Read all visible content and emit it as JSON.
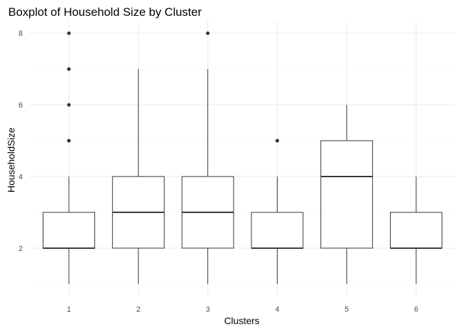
{
  "chart_data": {
    "type": "boxplot",
    "title": "Boxplot of Household Size by Cluster",
    "xlabel": "Clusters",
    "ylabel": "HouseholdSize",
    "categories": [
      "1",
      "2",
      "3",
      "4",
      "5",
      "6"
    ],
    "boxes": [
      {
        "cluster": "1",
        "whisker_low": 1,
        "q1": 2,
        "median": 2,
        "q3": 3,
        "whisker_high": 4,
        "outliers": [
          5,
          6,
          7,
          8
        ]
      },
      {
        "cluster": "2",
        "whisker_low": 1,
        "q1": 2,
        "median": 3,
        "q3": 4,
        "whisker_high": 7,
        "outliers": []
      },
      {
        "cluster": "3",
        "whisker_low": 1,
        "q1": 2,
        "median": 3,
        "q3": 4,
        "whisker_high": 7,
        "outliers": [
          8
        ]
      },
      {
        "cluster": "4",
        "whisker_low": 1,
        "q1": 2,
        "median": 2,
        "q3": 3,
        "whisker_high": 4,
        "outliers": [
          5
        ]
      },
      {
        "cluster": "5",
        "whisker_low": 1,
        "q1": 2,
        "median": 4,
        "q3": 5,
        "whisker_high": 6,
        "outliers": []
      },
      {
        "cluster": "6",
        "whisker_low": 1,
        "q1": 2,
        "median": 2,
        "q3": 3,
        "whisker_high": 4,
        "outliers": []
      }
    ],
    "ylim": [
      0.65,
      8.35
    ],
    "yticks": [
      2,
      4,
      6,
      8
    ],
    "ytick_labels": [
      "2",
      "4",
      "6",
      "8"
    ],
    "grid": true,
    "colors": {
      "box_fill": "#ffffff",
      "box_line": "#333333",
      "median": "#333333",
      "outlier": "#333333",
      "grid_major": "#ebebeb",
      "grid_minor": "#f5f5f5"
    }
  }
}
